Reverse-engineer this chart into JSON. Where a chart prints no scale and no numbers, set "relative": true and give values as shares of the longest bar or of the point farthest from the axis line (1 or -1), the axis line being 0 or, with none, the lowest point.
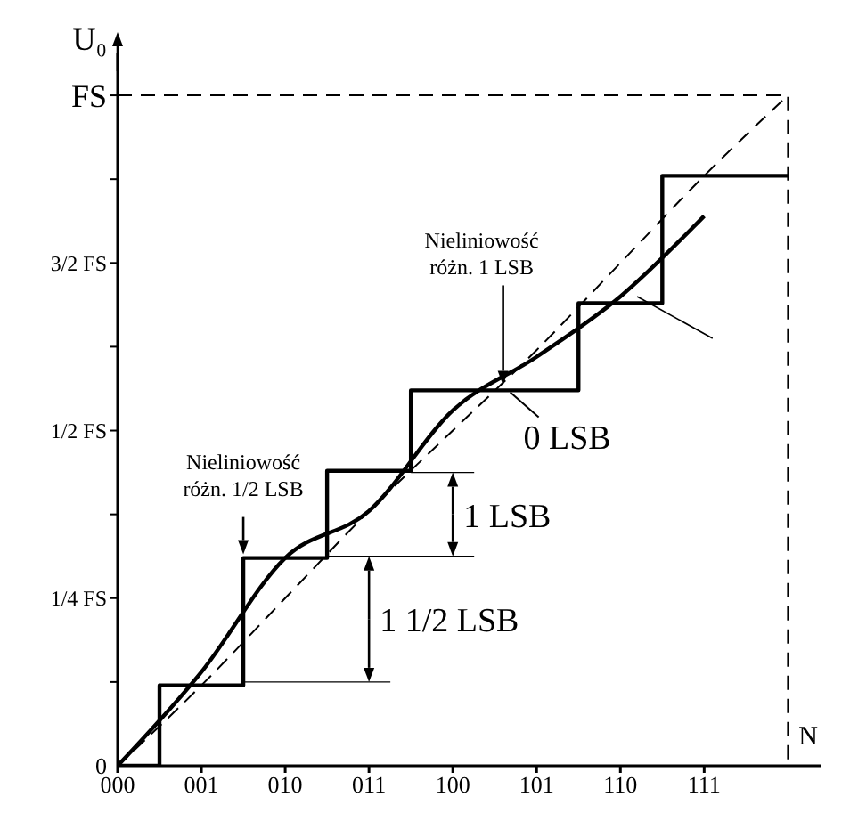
{
  "chart_data": {
    "type": "line",
    "xlabel": "N",
    "ylabel": "U₀",
    "relative": true,
    "categories": [
      "000",
      "001",
      "010",
      "011",
      "100",
      "101",
      "110",
      "111",
      null
    ],
    "series": [
      {
        "type": "step",
        "color": "#000000",
        "values": [
          0,
          0.12,
          0.31,
          0.44,
          0.56,
          0.56,
          0.69,
          0.88,
          0.88
        ]
      },
      {
        "color": "#000000",
        "line_style": "dashed",
        "values": [
          0,
          0.12,
          0.25,
          0.38,
          0.5,
          0.62,
          0.75,
          0.88,
          1
        ]
      },
      {
        "color": "#000000",
        "values": [
          0,
          0.14,
          0.31,
          0.38,
          0.53,
          0.61,
          0.7,
          0.82,
          null
        ]
      }
    ],
    "annotations": [
      {
        "text": "Nieliniowość różn. 1/2 LSB",
        "y": 0.31
      },
      "Nieliniowość różn. 1 LSB",
      "0 LSB",
      "1 LSB",
      "1 1/2 LSB",
      "0",
      "1/4 FS",
      "1/2 FS",
      "3/2 FS",
      "FS"
    ],
    "grid": false,
    "marker": "none"
  }
}
